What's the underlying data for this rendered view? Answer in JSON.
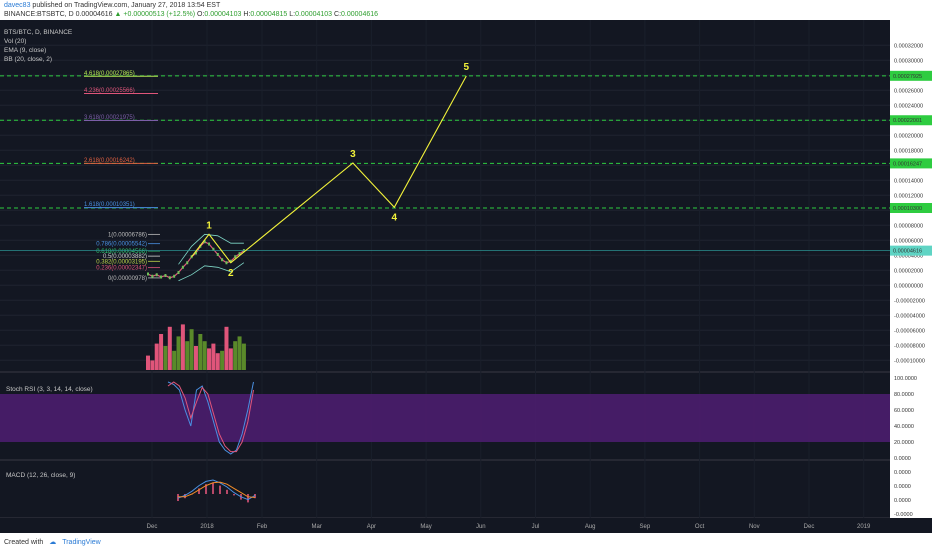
{
  "header": {
    "author": "davec83",
    "published": "published on TradingView.com, January 27, 2018 13:54 EST",
    "symbol": "BINANCE:BTSBTC, D",
    "last": "0.00004616",
    "change": "+0.00000513 (+12.5%)",
    "o_label": "O:",
    "o_val": "0.00004103",
    "h_label": "H:",
    "h_val": "0.00004815",
    "l_label": "L:",
    "l_val": "0.00004103",
    "c_label": "C:",
    "c_val": "0.00004616"
  },
  "footer": {
    "created": "Created with",
    "brand": "TradingView"
  },
  "colors": {
    "bg": "#131722",
    "panel_border": "#3a3a44",
    "wave": "#f2f23a",
    "target": "#2ecc40",
    "rsi_band": "#4b1d6e",
    "rsi_k": "#4a90e2",
    "rsi_d": "#e0557a",
    "macd": "#4a90e2",
    "signal": "#f28c28",
    "hist": "#e0557a",
    "vol_up": "#5a8a2a",
    "vol_down": "#e0557a",
    "bb": "#7fd8c8"
  },
  "chart_data": [
    {
      "type": "line",
      "title": "BTS/BTC, D, BINANCE",
      "indicators": [
        "Vol (20)",
        "EMA (9, close)",
        "BB (20, close, 2)"
      ],
      "y_ticks": [
        "0.00032000",
        "0.00030000",
        "0.00028000",
        "0.00026000",
        "0.00024000",
        "0.00022000",
        "0.00020000",
        "0.00018000",
        "0.00016000",
        "0.00014000",
        "0.00012000",
        "0.00010000",
        "0.00008000",
        "0.00006000",
        "0.00004000",
        "0.00002000",
        "0.00000000",
        "-0.00002000",
        "-0.00004000",
        "-0.00006000",
        "-0.00008000",
        "-0.00010000"
      ],
      "ylim": [
        -0.000105,
        0.000335
      ],
      "x_ticks": [
        "Dec",
        "2018",
        "Feb",
        "Mar",
        "Apr",
        "May",
        "Jun",
        "Jul",
        "Aug",
        "Sep",
        "Oct",
        "Nov",
        "Dec",
        "2019"
      ],
      "last_price_label": "0.00004616",
      "price_series": [
        {
          "x": 0,
          "y": 1.5e-05
        },
        {
          "x": 2,
          "y": 1.2e-05
        },
        {
          "x": 4,
          "y": 1.4e-05
        },
        {
          "x": 6,
          "y": 1.1e-05
        },
        {
          "x": 8,
          "y": 1.3e-05
        },
        {
          "x": 10,
          "y": 1e-05
        },
        {
          "x": 12,
          "y": 1.2e-05
        },
        {
          "x": 14,
          "y": 1.7e-05
        },
        {
          "x": 16,
          "y": 2.4e-05
        },
        {
          "x": 18,
          "y": 3e-05
        },
        {
          "x": 20,
          "y": 3.8e-05
        },
        {
          "x": 22,
          "y": 4.3e-05
        },
        {
          "x": 24,
          "y": 5.2e-05
        },
        {
          "x": 26,
          "y": 5.8e-05
        },
        {
          "x": 28,
          "y": 5.5e-05
        },
        {
          "x": 30,
          "y": 4.8e-05
        },
        {
          "x": 32,
          "y": 4.1e-05
        },
        {
          "x": 34,
          "y": 3.4e-05
        },
        {
          "x": 36,
          "y": 3e-05
        },
        {
          "x": 38,
          "y": 3.2e-05
        },
        {
          "x": 40,
          "y": 3.8e-05
        },
        {
          "x": 42,
          "y": 4.2e-05
        },
        {
          "x": 44,
          "y": 4.62e-05
        }
      ],
      "bb_upper": [
        {
          "x": 14,
          "y": 2.8e-05
        },
        {
          "x": 20,
          "y": 5.2e-05
        },
        {
          "x": 26,
          "y": 6.8e-05
        },
        {
          "x": 32,
          "y": 6.6e-05
        },
        {
          "x": 38,
          "y": 5.6e-05
        },
        {
          "x": 44,
          "y": 5.6e-05
        }
      ],
      "bb_lower": [
        {
          "x": 14,
          "y": 6e-06
        },
        {
          "x": 20,
          "y": 1.4e-05
        },
        {
          "x": 26,
          "y": 2.6e-05
        },
        {
          "x": 32,
          "y": 2.4e-05
        },
        {
          "x": 38,
          "y": 1.8e-05
        },
        {
          "x": 44,
          "y": 3e-05
        }
      ],
      "fib_levels": [
        {
          "label": "1(0.00006786)",
          "value": 6.786e-05,
          "color": "#bbbbbb"
        },
        {
          "label": "0.786(0.00005542)",
          "value": 5.542e-05,
          "color": "#4a90e2"
        },
        {
          "label": "0.618(0.00004566)",
          "value": 4.566e-05,
          "color": "#2ecc71"
        },
        {
          "label": "0.5(0.00003882)",
          "value": 3.882e-05,
          "color": "#cccccc"
        },
        {
          "label": "0.382(0.00003195)",
          "value": 3.195e-05,
          "color": "#c0d84a"
        },
        {
          "label": "0.236(0.00002347)",
          "value": 2.347e-05,
          "color": "#e0557a"
        },
        {
          "label": "0(0.00000978)",
          "value": 9.78e-06,
          "color": "#bbbbbb"
        }
      ],
      "ext_levels": [
        {
          "label": "4.618(0.00027865)",
          "value": 0.00027865,
          "color": "#b5e853"
        },
        {
          "label": "4.236(0.00025566)",
          "value": 0.00025566,
          "color": "#e0557a"
        },
        {
          "label": "3.618(0.00021975)",
          "value": 0.00021975,
          "color": "#7b5ea7"
        },
        {
          "label": "2.618(0.00016242)",
          "value": 0.00016242,
          "color": "#e06040"
        },
        {
          "label": "1.618(0.00010351)",
          "value": 0.00010351,
          "color": "#4a90e2"
        }
      ],
      "targets": [
        {
          "label": "0.00027925",
          "value": 0.00027925
        },
        {
          "label": "0.00022001",
          "value": 0.00022001
        },
        {
          "label": "0.00016247",
          "value": 0.00016247
        },
        {
          "label": "0.00010300",
          "value": 0.000103
        }
      ],
      "waves": [
        {
          "label": "",
          "x": 20,
          "y": 3.8e-05
        },
        {
          "label": "1",
          "x": 28,
          "y": 6.8e-05
        },
        {
          "label": "2",
          "x": 38,
          "y": 3e-05
        },
        {
          "label": "3",
          "x": 94,
          "y": 0.000163
        },
        {
          "label": "4",
          "x": 113,
          "y": 0.000104
        },
        {
          "label": "5",
          "x": 146,
          "y": 0.000279
        }
      ],
      "volume": [
        {
          "x": 0,
          "v": 0.3,
          "up": false
        },
        {
          "x": 2,
          "v": 0.2,
          "up": false
        },
        {
          "x": 4,
          "v": 0.55,
          "up": false
        },
        {
          "x": 6,
          "v": 0.75,
          "up": false
        },
        {
          "x": 8,
          "v": 0.5,
          "up": true
        },
        {
          "x": 10,
          "v": 0.9,
          "up": false
        },
        {
          "x": 12,
          "v": 0.4,
          "up": true
        },
        {
          "x": 14,
          "v": 0.7,
          "up": true
        },
        {
          "x": 16,
          "v": 0.95,
          "up": false
        },
        {
          "x": 18,
          "v": 0.6,
          "up": true
        },
        {
          "x": 20,
          "v": 0.85,
          "up": true
        },
        {
          "x": 22,
          "v": 0.5,
          "up": false
        },
        {
          "x": 24,
          "v": 0.75,
          "up": true
        },
        {
          "x": 26,
          "v": 0.6,
          "up": true
        },
        {
          "x": 28,
          "v": 0.45,
          "up": false
        },
        {
          "x": 30,
          "v": 0.55,
          "up": false
        },
        {
          "x": 32,
          "v": 0.35,
          "up": false
        },
        {
          "x": 34,
          "v": 0.4,
          "up": true
        },
        {
          "x": 36,
          "v": 0.9,
          "up": false
        },
        {
          "x": 38,
          "v": 0.45,
          "up": false
        },
        {
          "x": 40,
          "v": 0.6,
          "up": true
        },
        {
          "x": 42,
          "v": 0.7,
          "up": true
        },
        {
          "x": 44,
          "v": 0.55,
          "up": true
        }
      ]
    },
    {
      "type": "line",
      "title": "Stoch RSI (3, 3, 14, 14, close)",
      "y_ticks": [
        "100.0000",
        "80.0000",
        "60.0000",
        "40.0000",
        "20.0000",
        "0.0000"
      ],
      "ylim": [
        0,
        100
      ],
      "band": [
        20,
        80
      ],
      "series": [
        {
          "values": [
            [
              10,
              95
            ],
            [
              12,
              92
            ],
            [
              14,
              85
            ],
            [
              16,
              60
            ],
            [
              18,
              40
            ],
            [
              20,
              85
            ],
            [
              22,
              90
            ],
            [
              24,
              70
            ],
            [
              26,
              45
            ],
            [
              28,
              20
            ],
            [
              30,
              10
            ],
            [
              32,
              5
            ],
            [
              34,
              10
            ],
            [
              36,
              30
            ],
            [
              38,
              60
            ],
            [
              40,
              95
            ]
          ]
        },
        {
          "values": [
            [
              10,
              90
            ],
            [
              12,
              95
            ],
            [
              14,
              90
            ],
            [
              16,
              75
            ],
            [
              18,
              50
            ],
            [
              20,
              70
            ],
            [
              22,
              88
            ],
            [
              24,
              80
            ],
            [
              26,
              55
            ],
            [
              28,
              30
            ],
            [
              30,
              15
            ],
            [
              32,
              8
            ],
            [
              34,
              8
            ],
            [
              36,
              20
            ],
            [
              38,
              45
            ],
            [
              40,
              85
            ]
          ]
        }
      ]
    },
    {
      "type": "line",
      "title": "MACD (12, 26, close, 9)",
      "y_ticks": [
        "0.0000",
        "0.0000",
        "0.0000",
        "-0.0000"
      ],
      "series": [
        {
          "values": [
            [
              0,
              -0.3
            ],
            [
              4,
              -0.1
            ],
            [
              8,
              0.2
            ],
            [
              12,
              0.6
            ],
            [
              16,
              0.9
            ],
            [
              20,
              1.0
            ],
            [
              24,
              0.8
            ],
            [
              28,
              0.5
            ],
            [
              32,
              0.1
            ],
            [
              36,
              -0.2
            ],
            [
              40,
              -0.4
            ],
            [
              44,
              -0.1
            ]
          ]
        },
        {
          "values": [
            [
              0,
              -0.2
            ],
            [
              4,
              -0.2
            ],
            [
              8,
              0.0
            ],
            [
              12,
              0.3
            ],
            [
              16,
              0.6
            ],
            [
              20,
              0.8
            ],
            [
              24,
              0.85
            ],
            [
              28,
              0.7
            ],
            [
              32,
              0.4
            ],
            [
              36,
              0.1
            ],
            [
              40,
              -0.2
            ],
            [
              44,
              -0.25
            ]
          ]
        }
      ]
    }
  ]
}
